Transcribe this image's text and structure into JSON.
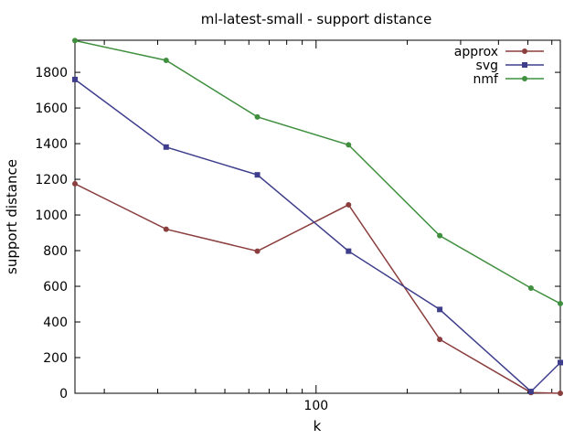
{
  "chart_data": {
    "type": "line",
    "title": "ml-latest-small - support distance",
    "xlabel": "k",
    "ylabel": "support distance",
    "xscale": "log",
    "xlim": [
      16,
      640
    ],
    "ylim": [
      0,
      1980
    ],
    "x_ticks": [
      100
    ],
    "y_ticks": [
      0,
      200,
      400,
      600,
      800,
      1000,
      1200,
      1400,
      1600,
      1800
    ],
    "grid": false,
    "legend_position": "top-right",
    "series": [
      {
        "name": "approx",
        "color": "#8b3e3e",
        "marker": "circle",
        "x": [
          16,
          32,
          64,
          128,
          256,
          512,
          640
        ],
        "y": [
          1175,
          920,
          797,
          1057,
          302,
          4,
          0
        ]
      },
      {
        "name": "svg",
        "color": "#3e3e8c",
        "marker": "square",
        "x": [
          16,
          32,
          64,
          128,
          256,
          512,
          640
        ],
        "y": [
          1760,
          1381,
          1225,
          797,
          470,
          10,
          172
        ]
      },
      {
        "name": "nmf",
        "color": "#3f8f3f",
        "marker": "circle",
        "x": [
          16,
          32,
          64,
          128,
          256,
          512,
          640
        ],
        "y": [
          1978,
          1867,
          1550,
          1393,
          884,
          590,
          503
        ]
      }
    ]
  }
}
